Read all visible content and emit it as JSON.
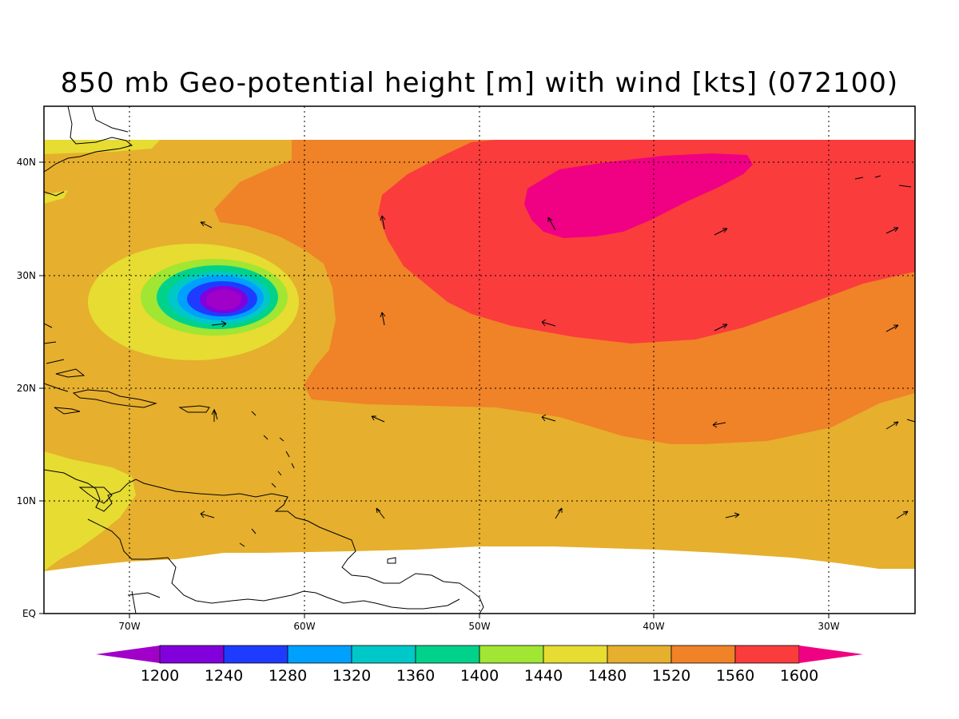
{
  "title": "850 mb Geo-potential height [m] with wind [kts] (072100)",
  "map": {
    "lon_ticks": [
      "70W",
      "60W",
      "50W",
      "40W",
      "30W"
    ],
    "lat_ticks": [
      "40N",
      "30N",
      "20N",
      "10N",
      "EQ"
    ],
    "grid": true
  },
  "colorbar": {
    "levels": [
      "1200",
      "1240",
      "1280",
      "1320",
      "1360",
      "1400",
      "1440",
      "1480",
      "1520",
      "1560",
      "1600"
    ],
    "colors": [
      "#a000c8",
      "#8200dc",
      "#1e3cff",
      "#00a0ff",
      "#00c8c8",
      "#00d28c",
      "#a0e632",
      "#e6dc32",
      "#e6af2d",
      "#f08228",
      "#fa3c3c",
      "#f00082"
    ]
  }
}
